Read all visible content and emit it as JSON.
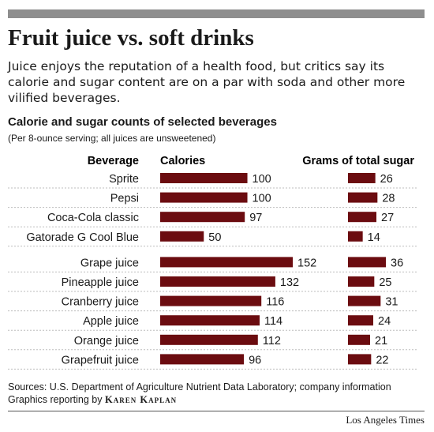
{
  "title": "Fruit juice vs. soft drinks",
  "deck": "Juice enjoys the reputation of a health food, but critics say its calorie and sugar content are on a par with soda and other more vilified beverages.",
  "subtitle": "Calorie and sugar counts of selected beverages",
  "note": "(Per 8-ounce serving; all juices are unsweetened)",
  "source": "Sources: U.S. Department of Agriculture Nutrient Data Laboratory; company information",
  "credit_prefix": "Graphics reporting by",
  "credit_name": "Karen Kaplan",
  "publisher": "Los Angeles Times",
  "colors": {
    "bar": "#6b0c10",
    "rule": "#8e8e8e"
  },
  "chart_data": {
    "type": "bar",
    "orientation": "horizontal",
    "category_header": "Beverage",
    "categories": [
      "Sprite",
      "Pepsi",
      "Coca-Cola classic",
      "Gatorade G Cool Blue",
      "Grape juice",
      "Pineapple juice",
      "Cranberry juice",
      "Apple juice",
      "Orange juice",
      "Grapefruit juice"
    ],
    "series": [
      {
        "name": "Calories",
        "values": [
          100,
          100,
          97,
          50,
          152,
          132,
          116,
          114,
          112,
          96
        ]
      },
      {
        "name": "Grams of total sugar",
        "values": [
          26,
          28,
          27,
          14,
          36,
          25,
          31,
          24,
          21,
          22
        ]
      }
    ],
    "groups": [
      [
        "Sprite",
        "Pepsi",
        "Coca-Cola classic",
        "Gatorade G Cool Blue"
      ],
      [
        "Grape juice",
        "Pineapple juice",
        "Cranberry juice",
        "Apple juice",
        "Orange juice",
        "Grapefruit juice"
      ]
    ],
    "data_labels": true,
    "legend": "none",
    "grid": false
  }
}
